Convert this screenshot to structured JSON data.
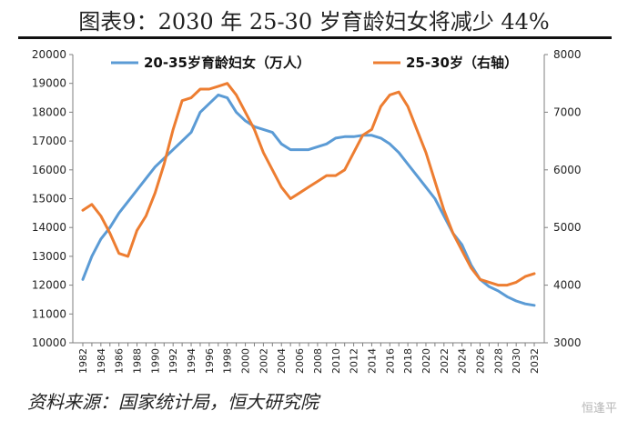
{
  "page": {
    "title": "图表9：2030 年 25-30 岁育龄妇女将减少 44%",
    "source": "资料来源：国家统计局，恒大研究院",
    "watermark": "恒逢平"
  },
  "chart_data": {
    "type": "line",
    "x": [
      1982,
      1983,
      1984,
      1985,
      1986,
      1987,
      1988,
      1989,
      1990,
      1991,
      1992,
      1993,
      1994,
      1995,
      1996,
      1997,
      1998,
      1999,
      2000,
      2001,
      2002,
      2003,
      2004,
      2005,
      2006,
      2007,
      2008,
      2009,
      2010,
      2011,
      2012,
      2013,
      2014,
      2015,
      2016,
      2017,
      2018,
      2019,
      2020,
      2021,
      2022,
      2023,
      2024,
      2025,
      2026,
      2027,
      2028,
      2029,
      2030,
      2031,
      2032
    ],
    "x_ticks": [
      "1982",
      "1984",
      "1986",
      "1988",
      "1990",
      "1992",
      "1994",
      "1996",
      "1998",
      "2000",
      "2002",
      "2004",
      "2006",
      "2008",
      "2010",
      "2012",
      "2014",
      "2016",
      "2018",
      "2020",
      "2022",
      "2024",
      "2026",
      "2028",
      "2030",
      "2032"
    ],
    "ylim_left": [
      10000,
      20000
    ],
    "yticks_left": [
      10000,
      11000,
      12000,
      13000,
      14000,
      15000,
      16000,
      17000,
      18000,
      19000,
      20000
    ],
    "ylim_right": [
      3000,
      8000
    ],
    "yticks_right": [
      3000,
      4000,
      5000,
      6000,
      7000,
      8000
    ],
    "legend_position": "top",
    "grid": false,
    "series": [
      {
        "name": "20-35岁育龄妇女（万人）",
        "axis": "left",
        "color": "#5b9bd5",
        "values": [
          12200,
          13000,
          13600,
          14000,
          14500,
          14900,
          15300,
          15700,
          16100,
          16400,
          16700,
          17000,
          17300,
          18000,
          18300,
          18600,
          18500,
          18000,
          17700,
          17500,
          17400,
          17300,
          16900,
          16700,
          16700,
          16700,
          16800,
          16900,
          17100,
          17150,
          17150,
          17200,
          17200,
          17100,
          16900,
          16600,
          16200,
          15800,
          15400,
          15000,
          14400,
          13800,
          13400,
          12700,
          12200,
          11950,
          11800,
          11600,
          11450,
          11350,
          11300
        ]
      },
      {
        "name": "25-30岁（右轴）",
        "axis": "right",
        "color": "#ed7d31",
        "values": [
          5300,
          5400,
          5200,
          4900,
          4550,
          4500,
          4950,
          5200,
          5600,
          6100,
          6700,
          7200,
          7250,
          7400,
          7400,
          7450,
          7500,
          7300,
          7000,
          6700,
          6300,
          6000,
          5700,
          5500,
          5600,
          5700,
          5800,
          5900,
          5900,
          6000,
          6300,
          6600,
          6700,
          7100,
          7300,
          7350,
          7100,
          6700,
          6300,
          5800,
          5300,
          4900,
          4600,
          4300,
          4100,
          4050,
          4000,
          4000,
          4050,
          4150,
          4200
        ]
      }
    ]
  }
}
